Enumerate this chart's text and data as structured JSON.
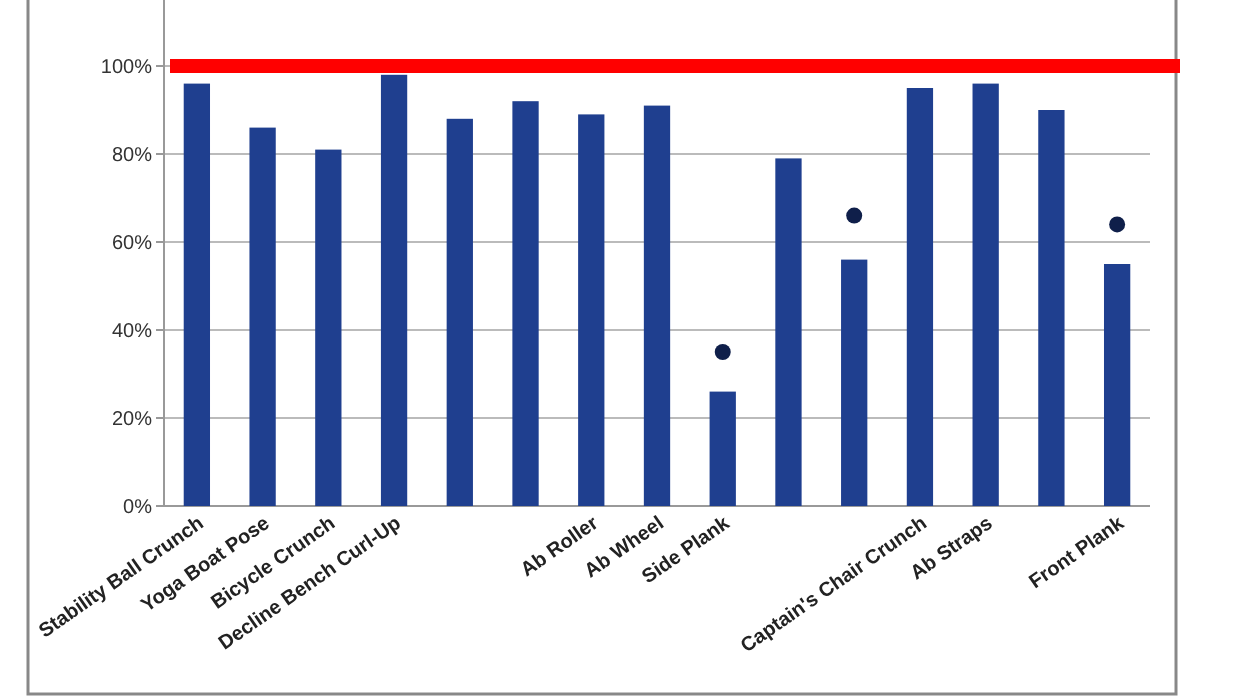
{
  "chart_data": {
    "type": "bar",
    "categories": [
      "Stability Ball Crunch",
      "Yoga Boat Pose",
      "Bicycle Crunch",
      "Decline Bench Curl-Up",
      null,
      null,
      "Ab Roller",
      "Ab Wheel",
      "Side Plank",
      null,
      null,
      "Captain's Chair Crunch",
      "Ab Straps",
      null,
      "Front Plank"
    ],
    "series": [
      {
        "color": "#1f3f8f",
        "values": [
          96,
          86,
          81,
          98,
          88,
          92,
          89,
          91,
          26,
          79,
          56,
          95,
          96,
          90,
          55
        ]
      },
      {
        "type": "scatter",
        "color": "#0f1f4a",
        "marker": "circle",
        "values": [
          null,
          null,
          null,
          null,
          null,
          null,
          null,
          null,
          35,
          null,
          66,
          null,
          null,
          null,
          64
        ]
      }
    ],
    "ylim": [
      0,
      115
    ],
    "yticks": [
      {
        "value": 0,
        "label": "0%"
      },
      {
        "value": 20,
        "label": "20%"
      },
      {
        "value": 40,
        "label": "40%"
      },
      {
        "value": 60,
        "label": "60%"
      },
      {
        "value": 80,
        "label": "80%"
      },
      {
        "value": 100,
        "label": "100%"
      }
    ],
    "grid": "y",
    "ref_lines": [
      {
        "axis": "y",
        "value": 100,
        "color": "#ff0000"
      }
    ]
  }
}
